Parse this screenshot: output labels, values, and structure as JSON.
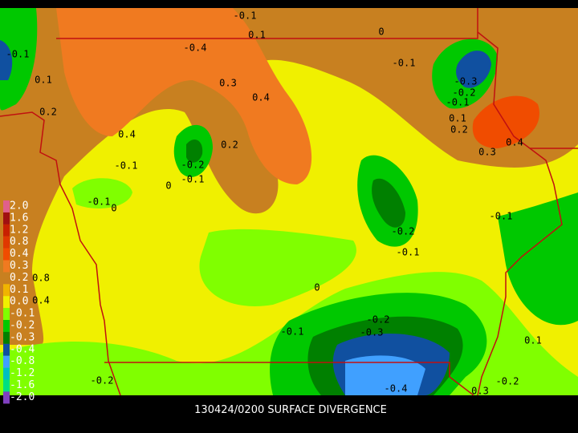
{
  "title": "130424/0200 SURFACE DIVERGENCE",
  "legend": {
    "labels": [
      "2.0",
      "1.6",
      "1.2",
      "0.8",
      "0.4",
      "0.3",
      "0.2",
      "0.1",
      "0.0",
      "-0.1",
      "-0.2",
      "-0.3",
      "-0.4",
      "-0.8",
      "-1.2",
      "-1.6",
      "-2.0"
    ],
    "colors": [
      "#e0608c",
      "#a01010",
      "#c82000",
      "#e03800",
      "#f04c00",
      "#f07a20",
      "#c88020",
      "#f0b400",
      "#f0f000",
      "#80ff00",
      "#00c800",
      "#008000",
      "#1050a0",
      "#40a0ff",
      "#00c0c0",
      "#00e080",
      "#8040c0"
    ]
  },
  "contour_labels": [
    "-0.1",
    "0.1",
    "0",
    "-0.4",
    "-0.1",
    "0.3",
    "0.4",
    "-0.3",
    "-0.2",
    "-0.1",
    "0.1",
    "0.2",
    "0.4",
    "0.2",
    "-0.2",
    "0.3",
    "0.4",
    "-0.1",
    "0",
    "-0.1",
    "-0.1",
    "0",
    "-0.1",
    "-0.2",
    "-0.1",
    "0",
    "0.8",
    "0.4",
    "-0.1",
    "-0.2",
    "-0.3",
    "0.1",
    "-0.2",
    "-0.4",
    "0.3",
    "-0.2",
    "-0.1",
    "0.1",
    "0.2"
  ]
}
